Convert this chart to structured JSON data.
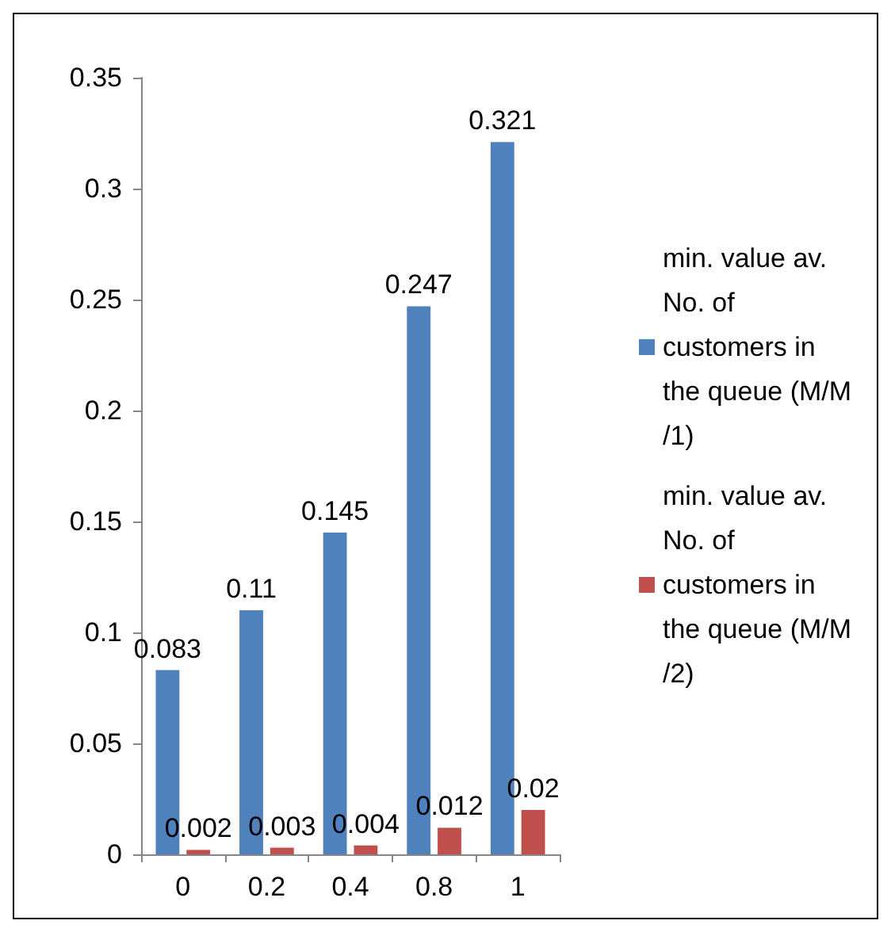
{
  "chart_data": {
    "type": "bar",
    "categories": [
      "0",
      "0.2",
      "0.4",
      "0.8",
      "1"
    ],
    "series": [
      {
        "name": "min. value av. No. of customers in the queue (M/M/1)",
        "color": "#4f81bd",
        "values": [
          0.083,
          0.11,
          0.145,
          0.247,
          0.321
        ]
      },
      {
        "name": "min. value av. No. of customers in the queue (M/M/2)",
        "color": "#c0504d",
        "values": [
          0.002,
          0.003,
          0.004,
          0.012,
          0.02
        ]
      }
    ],
    "ylim": [
      0,
      0.35
    ],
    "yticks": [
      0,
      0.05,
      0.1,
      0.15,
      0.2,
      0.25,
      0.3,
      0.35
    ],
    "grid": false,
    "legend": "right",
    "data_labels": true
  }
}
